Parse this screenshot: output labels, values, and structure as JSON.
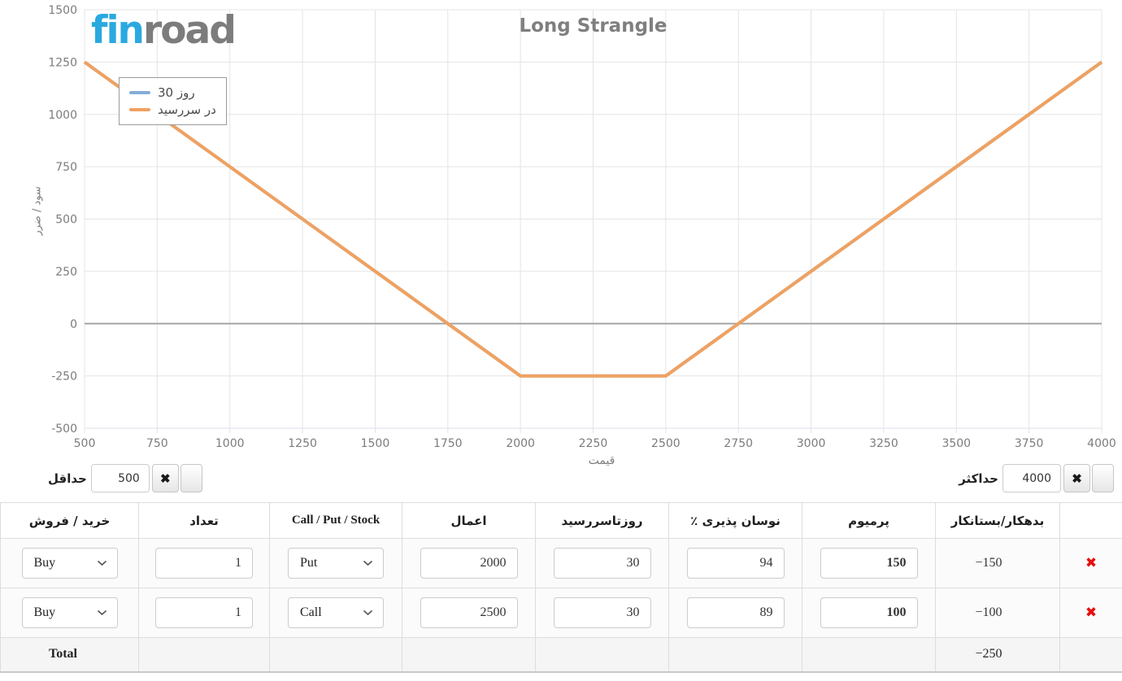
{
  "logo": {
    "part1": "fin",
    "part2": "road"
  },
  "chart": {
    "title": "Long Strangle",
    "x_title": "قیمت",
    "y_title": "سود / ضرر",
    "legend": [
      {
        "label": "30 روز",
        "color": "#85add8"
      },
      {
        "label": "در سررسید",
        "color": "#f0a160"
      }
    ]
  },
  "chart_data": {
    "type": "line",
    "title": "Long Strangle",
    "xlabel": "قیمت",
    "ylabel": "سود / ضرر",
    "xlim": [
      500,
      4000
    ],
    "ylim": [
      -500,
      1500
    ],
    "x_ticks": [
      500,
      750,
      1000,
      1250,
      1500,
      1750,
      2000,
      2250,
      2500,
      2750,
      3000,
      3250,
      3500,
      3750,
      4000
    ],
    "y_ticks": [
      -500,
      -250,
      0,
      250,
      500,
      750,
      1000,
      1250,
      1500
    ],
    "grid": true,
    "legend_position": "top-left",
    "series": [
      {
        "name": "30 روز",
        "color": "#85add8",
        "points": [
          [
            500,
            1250
          ],
          [
            2000,
            -250
          ],
          [
            2500,
            -250
          ],
          [
            4000,
            1250
          ]
        ]
      },
      {
        "name": "در سررسید",
        "color": "#f0a160",
        "points": [
          [
            500,
            1250
          ],
          [
            2000,
            -250
          ],
          [
            2500,
            -250
          ],
          [
            4000,
            1250
          ]
        ]
      }
    ]
  },
  "colors": {
    "logo_blue": "#29a9e0",
    "logo_gray": "#7c7c7c",
    "line_orange": "#f0a160",
    "line_blue": "#85add8",
    "delete_red": "#e60f0f",
    "zero_line": "#a6a6a6",
    "gridline": "#e4e4e4"
  },
  "range_controls": {
    "min": {
      "label": "حداقل",
      "value": "500",
      "clear_glyph": "✖"
    },
    "max": {
      "label": "حداکثر",
      "value": "4000",
      "clear_glyph": "✖"
    }
  },
  "table": {
    "headers": {
      "side": "خرید / فروش",
      "qty": "تعداد",
      "type": "Call / Put / Stock",
      "strike": "اعمال",
      "days": "روزتاسررسید",
      "vol": "نوسان پذیری ٪",
      "premium": "پرمیوم",
      "balance": "بدهکار/بستانکار",
      "actions": ""
    },
    "rows": [
      {
        "side": "Buy",
        "qty": "1",
        "type": "Put",
        "strike": "2000",
        "days": "30",
        "vol": "94",
        "premium": "150",
        "balance": "−150"
      },
      {
        "side": "Buy",
        "qty": "1",
        "type": "Call",
        "strike": "2500",
        "days": "30",
        "vol": "89",
        "premium": "100",
        "balance": "−100"
      }
    ],
    "total_label": "Total",
    "total_balance": "−250",
    "delete_glyph": "✖"
  }
}
